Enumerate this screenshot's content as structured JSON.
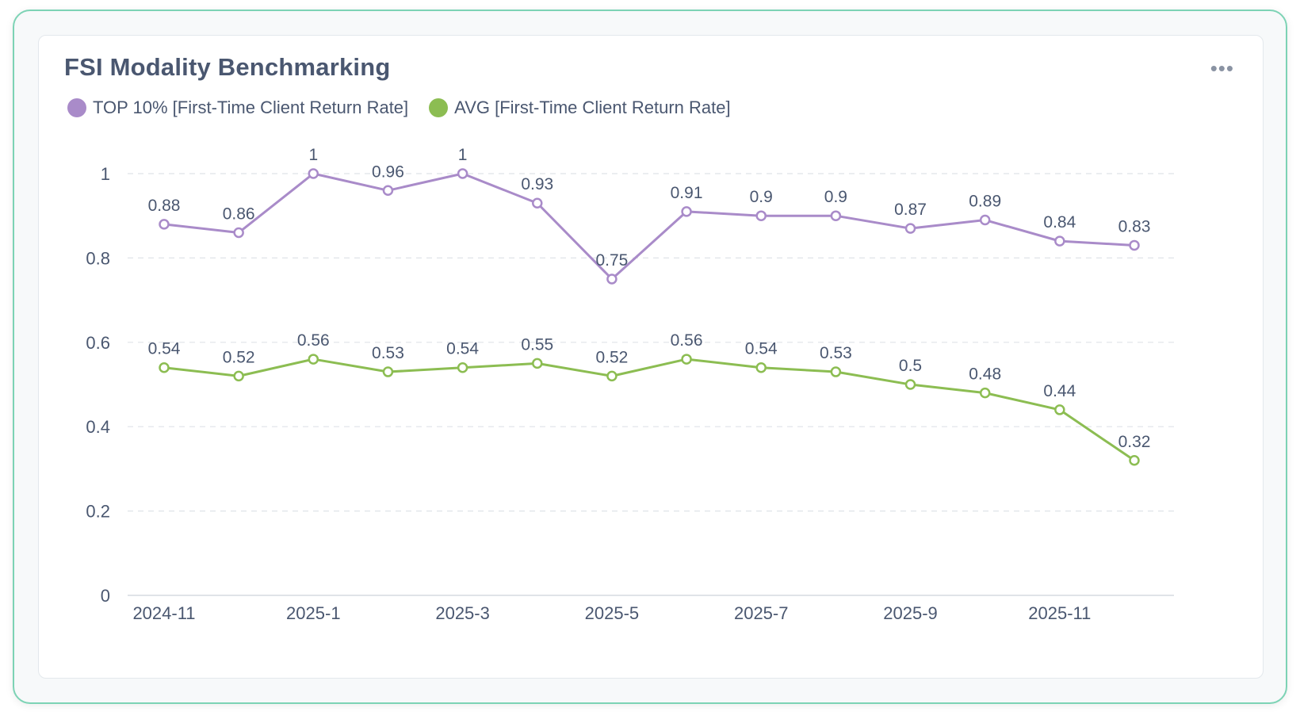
{
  "card": {
    "title": "FSI Modality Benchmarking",
    "menu_icon": "more-horizontal-icon"
  },
  "colors": {
    "top10": "#a98bc9",
    "avg": "#8cbd52",
    "grid": "#dfe3e8",
    "axis": "#d5dae0",
    "frame": "#7dd3b5"
  },
  "chart_data": {
    "type": "line",
    "title": "FSI Modality Benchmarking",
    "xlabel": "",
    "ylabel": "",
    "x": [
      "2024-11",
      "2024-12",
      "2025-1",
      "2025-2",
      "2025-3",
      "2025-4",
      "2025-5",
      "2025-6",
      "2025-7",
      "2025-8",
      "2025-9",
      "2025-10",
      "2025-11",
      "2025-12"
    ],
    "x_tick_labels": [
      "2024-11",
      "2025-1",
      "2025-3",
      "2025-5",
      "2025-7",
      "2025-9",
      "2025-11"
    ],
    "ylim": [
      0,
      1
    ],
    "y_ticks": [
      0,
      0.2,
      0.4,
      0.6,
      0.8,
      1
    ],
    "y_tick_labels": [
      "0",
      "0.2",
      "0.4",
      "0.6",
      "0.8",
      "1"
    ],
    "grid": true,
    "legend": "top-left",
    "series": [
      {
        "name": "TOP 10% [First-Time Client Return Rate]",
        "color": "#a98bc9",
        "values": [
          0.88,
          0.86,
          1,
          0.96,
          1,
          0.93,
          0.75,
          0.91,
          0.9,
          0.9,
          0.87,
          0.89,
          0.84,
          0.83
        ],
        "labels": [
          "0.88",
          "0.86",
          "1",
          "0.96",
          "1",
          "0.93",
          "0.75",
          "0.91",
          "0.9",
          "0.9",
          "0.87",
          "0.89",
          "0.84",
          "0.83"
        ]
      },
      {
        "name": "AVG [First-Time Client Return Rate]",
        "color": "#8cbd52",
        "values": [
          0.54,
          0.52,
          0.56,
          0.53,
          0.54,
          0.55,
          0.52,
          0.56,
          0.54,
          0.53,
          0.5,
          0.48,
          0.44,
          0.32
        ],
        "labels": [
          "0.54",
          "0.52",
          "0.56",
          "0.53",
          "0.54",
          "0.55",
          "0.52",
          "0.56",
          "0.54",
          "0.53",
          "0.5",
          "0.48",
          "0.44",
          "0.32"
        ]
      }
    ]
  }
}
